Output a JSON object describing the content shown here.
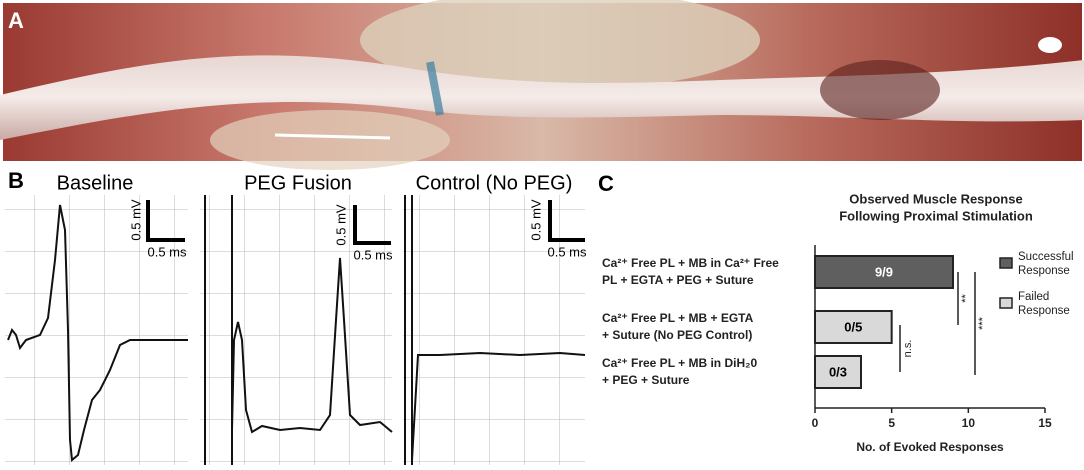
{
  "panel_labels": {
    "a": "A",
    "b": "B",
    "c": "C"
  },
  "traces": [
    {
      "title": "Baseline",
      "scale_y": "0.5 mV",
      "scale_x": "0.5 ms"
    },
    {
      "title": "PEG Fusion",
      "scale_y": "0.5 mV",
      "scale_x": "0.5 ms"
    },
    {
      "title": "Control (No PEG)",
      "scale_y": "0.5 mV",
      "scale_x": "0.5 ms"
    }
  ],
  "chart_data": {
    "type": "barh",
    "title": [
      "Observed Muscle Response",
      "Following Proximal Stimulation"
    ],
    "categories": [
      [
        "Ca²⁺ Free PL + MB in Ca²⁺ Free",
        "PL + EGTA + PEG + Suture"
      ],
      [
        "Ca²⁺ Free PL + MB + EGTA",
        "+ Suture (No PEG Control)"
      ],
      [
        "Ca²⁺ Free PL + MB in DiH₂0",
        "+ PEG + Suture"
      ]
    ],
    "series": [
      {
        "name": "Successful Response",
        "color": "#5f5f5f",
        "values": [
          9,
          null,
          null
        ],
        "value_labels": [
          "9/9",
          null,
          null
        ],
        "label_color": "#ffffff"
      },
      {
        "name": "Failed Response",
        "color": "#d9d9d9",
        "values": [
          null,
          5,
          3
        ],
        "value_labels": [
          null,
          "0/5",
          "0/3"
        ],
        "label_color": "#000000"
      }
    ],
    "xlabel": "No. of Evoked Responses",
    "xlim": [
      0,
      15
    ],
    "xticks": [
      0,
      5,
      10,
      15
    ],
    "annotations": [
      "**",
      "***",
      "n.s."
    ]
  }
}
